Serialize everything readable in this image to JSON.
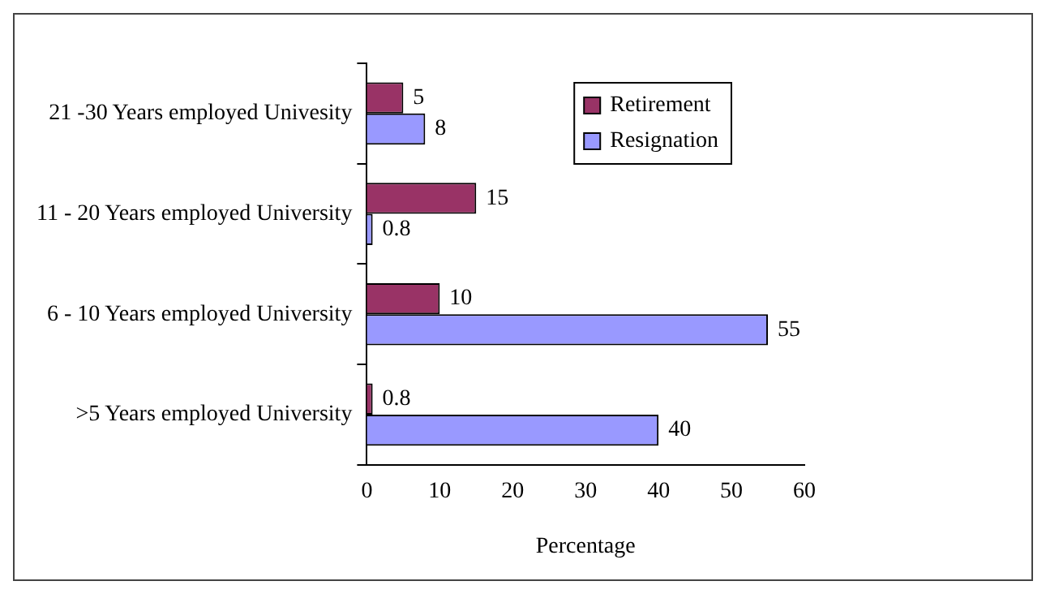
{
  "chart_data": {
    "type": "bar",
    "orientation": "horizontal",
    "xlabel": "Percentage",
    "categories": [
      "21 -30 Years employed Univesity",
      "11 - 20 Years employed University",
      "6 - 10 Years employed University",
      ">5 Years employed University"
    ],
    "series": [
      {
        "name": "Retirement",
        "color": "#993366",
        "values": [
          5,
          15,
          10,
          0.8
        ]
      },
      {
        "name": "Resignation",
        "color": "#9999ff",
        "values": [
          8,
          0.8,
          55,
          40
        ]
      }
    ],
    "xlim": [
      0,
      60
    ],
    "xticks": [
      0,
      10,
      20,
      30,
      40,
      50,
      60
    ],
    "grid": false,
    "legend": "top right",
    "data_labels": true
  }
}
